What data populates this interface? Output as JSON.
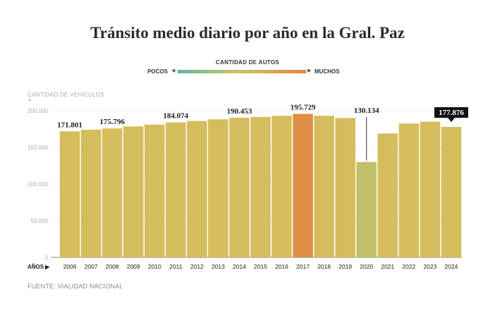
{
  "title": "Tránsito medio diario por año en la Gral. Paz",
  "legend": {
    "title": "CANTIDAD DE AUTOS",
    "low_label": "POCOS",
    "high_label": "MUCHOS"
  },
  "source": "FUENTE: VIALIDAD NACIONAL",
  "chart_data": {
    "type": "bar",
    "ylabel": "CANTIDAD DE VEHÍCULOS",
    "xlabel": "AÑOS",
    "ylim": [
      0,
      200000
    ],
    "yticks": [
      0,
      50000,
      100000,
      150000,
      200000
    ],
    "ytick_labels": [
      "0",
      "50.000",
      "100.000",
      "150.000",
      "200.000"
    ],
    "grid": true,
    "categories": [
      "2006",
      "2007",
      "2008",
      "2009",
      "2010",
      "2011",
      "2012",
      "2013",
      "2014",
      "2015",
      "2016",
      "2017",
      "2018",
      "2019",
      "2020",
      "2021",
      "2022",
      "2023",
      "2024"
    ],
    "values": [
      171801,
      174000,
      175796,
      178500,
      181000,
      184074,
      186000,
      188200,
      190453,
      191500,
      193000,
      195729,
      193000,
      190000,
      130134,
      169000,
      182500,
      185000,
      177876
    ],
    "colors": [
      "#d5bc5c",
      "#d5bc5c",
      "#d5bc5c",
      "#d5bc5c",
      "#d5bc5c",
      "#d5bc5c",
      "#d5bc5c",
      "#d5bc5c",
      "#d5bc5c",
      "#d5bc5c",
      "#d5bc5c",
      "#df8e45",
      "#d5bc5c",
      "#d5bc5c",
      "#c2c06a",
      "#d5bc5c",
      "#d5bc5c",
      "#d5bc5c",
      "#d5bc5c"
    ],
    "data_labels": [
      {
        "category": "2006",
        "text": "171.801"
      },
      {
        "category": "2008",
        "text": "175.796"
      },
      {
        "category": "2011",
        "text": "184.074"
      },
      {
        "category": "2014",
        "text": "190.453"
      },
      {
        "category": "2017",
        "text": "195.729"
      },
      {
        "category": "2020",
        "text": "130.134"
      },
      {
        "category": "2024",
        "text": "177.876",
        "highlight": true
      }
    ]
  }
}
